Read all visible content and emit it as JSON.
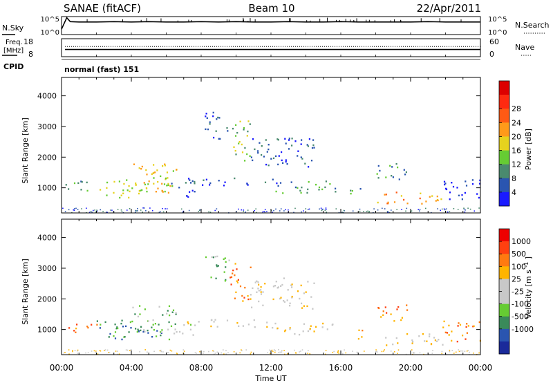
{
  "header": {
    "station": "SANAE (fitACF)",
    "beam": "Beam 10",
    "date": "22/Apr/2011"
  },
  "chart_data": [
    {
      "id": "nsky_nsearch",
      "type": "line",
      "left_label": "N.Sky",
      "right_label": "N.Search",
      "left_ticks": [
        "10^5",
        "10^0"
      ],
      "right_ticks": [
        "10^5",
        "10^0"
      ],
      "x_hours": [
        0,
        0.3,
        0.5,
        1,
        2,
        3,
        4,
        5,
        6,
        7,
        8,
        9,
        10,
        11,
        12,
        13,
        14,
        15,
        16,
        17,
        18,
        19,
        20,
        21,
        22,
        23,
        24
      ],
      "nsky_log10": [
        1.5,
        4.7,
        3.6,
        3.5,
        3.5,
        3.6,
        3.5,
        3.6,
        3.5,
        3.5,
        3.6,
        3.5,
        3.6,
        3.5,
        3.5,
        3.6,
        3.5,
        3.5,
        3.6,
        3.5,
        3.5,
        3.5,
        3.5,
        3.6,
        3.5,
        3.5,
        3.5
      ]
    },
    {
      "id": "freq_nave",
      "type": "line",
      "left_label_1": "Freq.",
      "left_label_2": "[MHz]",
      "right_label": "Nave",
      "left_ticks": [
        "18",
        "8"
      ],
      "right_ticks": [
        "60",
        "0"
      ],
      "left_ylim": [
        8,
        18
      ],
      "right_ylim": [
        0,
        60
      ],
      "freq_mhz": 12.0,
      "nave": 34
    },
    {
      "id": "cpid",
      "label": "CPID",
      "value": "normal (fast) 151"
    },
    {
      "id": "power",
      "type": "heatmap",
      "ylabel": "Slant Range [km]",
      "yticks": [
        "1000",
        "2000",
        "3000",
        "4000"
      ],
      "ylim": [
        180,
        4600
      ],
      "xlim_hours": [
        0,
        24
      ],
      "colorbar_label": "Power [dB]",
      "colorbar_ticks": [
        "4",
        "8",
        "12",
        "16",
        "20",
        "24",
        "28"
      ],
      "colorbar_colors": [
        "#1a1aff",
        "#2a55b0",
        "#4a8a6e",
        "#66cc33",
        "#e6d21e",
        "#ff9a1a",
        "#ff5a14",
        "#ff2a10",
        "#dd0000"
      ],
      "echo_regions": [
        {
          "t0": 0.2,
          "t1": 2.0,
          "r0": 900,
          "r1": 1250,
          "level": 2
        },
        {
          "t0": 2.0,
          "t1": 6.2,
          "r0": 700,
          "r1": 1350,
          "level": 4
        },
        {
          "t0": 4.0,
          "t1": 6.6,
          "r0": 900,
          "r1": 1800,
          "level": 4
        },
        {
          "t0": 6.2,
          "t1": 7.6,
          "r0": 700,
          "r1": 1200,
          "level": 1
        },
        {
          "t0": 7.0,
          "t1": 12.5,
          "r0": 1100,
          "r1": 1350,
          "level": 1
        },
        {
          "t0": 12.0,
          "t1": 15.8,
          "r0": 850,
          "r1": 1250,
          "level": 2
        },
        {
          "t0": 8.2,
          "t1": 9.6,
          "r0": 2600,
          "r1": 3500,
          "level": 1
        },
        {
          "t0": 9.6,
          "t1": 10.8,
          "r0": 1900,
          "r1": 3200,
          "level": 3
        },
        {
          "t0": 10.8,
          "t1": 14.5,
          "r0": 1700,
          "r1": 2700,
          "level": 1
        },
        {
          "t0": 16.5,
          "t1": 17.2,
          "r0": 700,
          "r1": 1100,
          "level": 2
        },
        {
          "t0": 18.0,
          "t1": 19.8,
          "r0": 1300,
          "r1": 1900,
          "level": 2
        },
        {
          "t0": 18.0,
          "t1": 21.8,
          "r0": 500,
          "r1": 900,
          "level": 5
        },
        {
          "t0": 21.8,
          "t1": 24.0,
          "r0": 600,
          "r1": 1300,
          "level": 0
        }
      ]
    },
    {
      "id": "velocity",
      "type": "heatmap",
      "ylabel": "Slant Range [km]",
      "yticks": [
        "1000",
        "2000",
        "3000",
        "4000"
      ],
      "ylim": [
        180,
        4600
      ],
      "xlim_hours": [
        0,
        24
      ],
      "xlabel": "Time UT",
      "xticks": [
        "00:00",
        "04:00",
        "08:00",
        "12:00",
        "16:00",
        "20:00",
        "00:00"
      ],
      "colorbar_label_main": "Velocity",
      "colorbar_label_unit": "[m s",
      "colorbar_label_exp": "-1",
      "colorbar_label_close": "]",
      "colorbar_ticks": [
        "1000",
        "500",
        "100",
        "25",
        "-25",
        "-100",
        "-500",
        "-1000"
      ],
      "colorbar_colors": [
        "#1a2a9a",
        "#2a55b0",
        "#3a8a5a",
        "#66cc33",
        "#c8c8c8",
        "#c8c8c8",
        "#ffb400",
        "#ff7a10",
        "#ff4010",
        "#ee0000"
      ],
      "echo_regions": [
        {
          "t0": 0.2,
          "t1": 2.0,
          "r0": 900,
          "r1": 1250,
          "level": 7
        },
        {
          "t0": 2.0,
          "t1": 6.2,
          "r0": 700,
          "r1": 1350,
          "level": 2
        },
        {
          "t0": 4.0,
          "t1": 6.6,
          "r0": 900,
          "r1": 1800,
          "level": 3
        },
        {
          "t0": 6.2,
          "t1": 7.6,
          "r0": 700,
          "r1": 1200,
          "level": 4
        },
        {
          "t0": 7.0,
          "t1": 12.5,
          "r0": 1100,
          "r1": 1350,
          "level": 5
        },
        {
          "t0": 12.0,
          "t1": 15.8,
          "r0": 850,
          "r1": 1250,
          "level": 5
        },
        {
          "t0": 8.2,
          "t1": 9.6,
          "r0": 2600,
          "r1": 3500,
          "level": 3
        },
        {
          "t0": 9.6,
          "t1": 10.8,
          "r0": 1900,
          "r1": 3200,
          "level": 7
        },
        {
          "t0": 10.8,
          "t1": 14.5,
          "r0": 1700,
          "r1": 2700,
          "level": 5
        },
        {
          "t0": 16.5,
          "t1": 17.2,
          "r0": 700,
          "r1": 1100,
          "level": 6
        },
        {
          "t0": 18.0,
          "t1": 19.8,
          "r0": 1300,
          "r1": 1900,
          "level": 7
        },
        {
          "t0": 18.0,
          "t1": 21.8,
          "r0": 500,
          "r1": 900,
          "level": 5
        },
        {
          "t0": 21.8,
          "t1": 24.0,
          "r0": 600,
          "r1": 1300,
          "level": 7
        }
      ]
    }
  ]
}
